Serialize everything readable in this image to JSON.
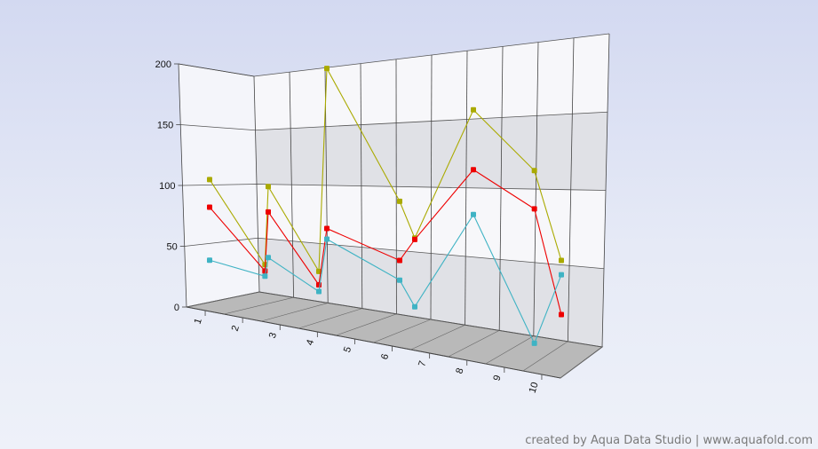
{
  "chart_data": {
    "type": "line",
    "categories": [
      "1",
      "2",
      "3",
      "4",
      "5",
      "6",
      "7",
      "8",
      "9",
      "10"
    ],
    "ylim": [
      0,
      200
    ],
    "yticks": [
      0,
      50,
      100,
      150,
      200
    ],
    "grid": true,
    "series": [
      {
        "color": "#aaaa00",
        "front": [
          100,
          98,
          190,
          70,
          160,
          66
        ],
        "back": [
          32,
          32,
          97,
          122
        ]
      },
      {
        "color": "#ee0000",
        "front": [
          77,
          78,
          70,
          69,
          120,
          32
        ],
        "back": [
          26,
          20,
          49,
          95
        ]
      },
      {
        "color": "#3fb3c4",
        "front": [
          33,
          42,
          62,
          22,
          90,
          57
        ],
        "back": [
          21,
          14,
          33,
          0
        ]
      }
    ]
  },
  "watermark": "created by Aqua Data Studio | www.aquafold.com"
}
